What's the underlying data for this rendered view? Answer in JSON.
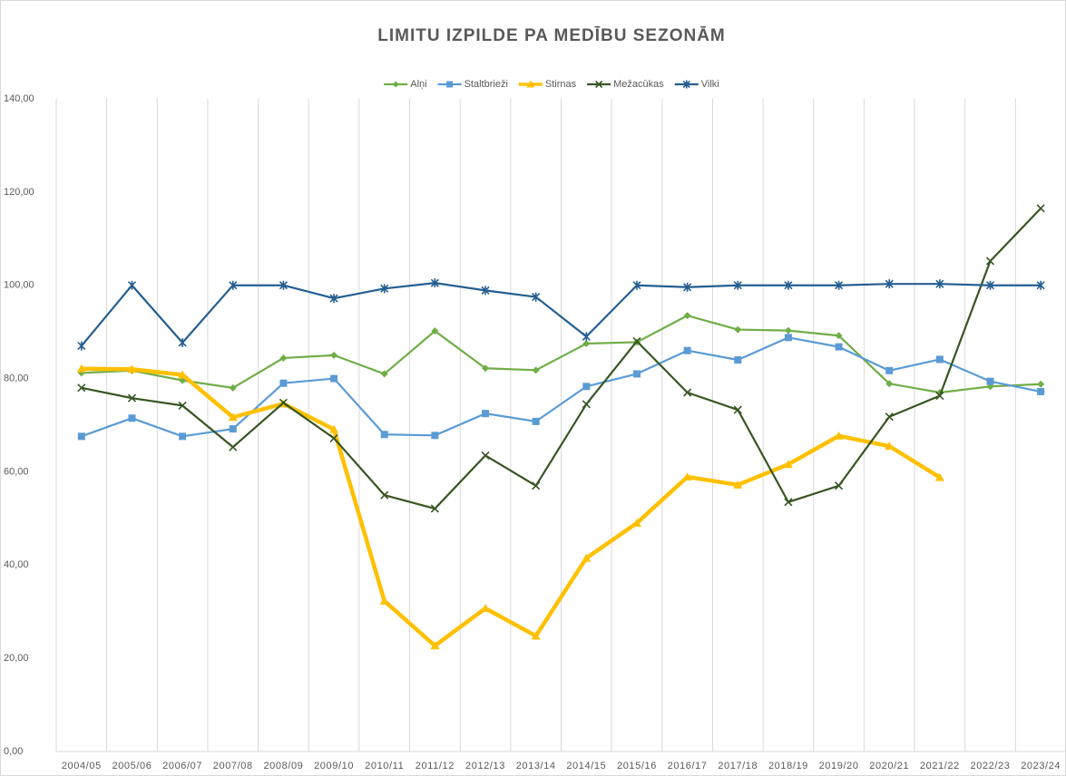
{
  "chart_data": {
    "type": "line",
    "title": "LIMITU IZPILDE PA MEDĪBU SEZONĀM",
    "categories": [
      "2004/05",
      "2005/06",
      "2006/07",
      "2007/08",
      "2008/09",
      "2009/10",
      "2010/11",
      "2011/12",
      "2012/13",
      "2013/14",
      "2014/15",
      "2015/16",
      "2016/17",
      "2017/18",
      "2018/19",
      "2019/20",
      "2020/21",
      "2021/22",
      "2022/23",
      "2023/24"
    ],
    "series": [
      {
        "name": "Alņi",
        "color": "#70ad47",
        "marker": "diamond",
        "width": 2.2,
        "values": [
          81.2,
          81.7,
          79.6,
          78.0,
          84.4,
          85.0,
          81.0,
          90.2,
          82.2,
          81.8,
          87.5,
          87.8,
          93.5,
          90.5,
          90.3,
          89.2,
          78.9,
          77.0,
          78.3,
          78.8
        ]
      },
      {
        "name": "Staltbrieži",
        "color": "#5b9bd5",
        "marker": "square",
        "width": 2.2,
        "values": [
          67.6,
          71.5,
          67.6,
          69.2,
          79.0,
          80.0,
          68.0,
          67.8,
          72.5,
          70.8,
          78.3,
          81.0,
          86.0,
          84.0,
          88.8,
          86.8,
          81.7,
          84.1,
          79.4,
          77.2
        ]
      },
      {
        "name": "Stirnas",
        "color": "#ffc000",
        "marker": "triangle",
        "width": 4.5,
        "values": [
          82.1,
          82.0,
          80.8,
          71.7,
          74.6,
          69.1,
          32.3,
          22.7,
          30.7,
          24.8,
          41.5,
          49.0,
          58.9,
          57.2,
          61.6,
          67.7,
          65.5,
          58.8,
          null,
          null
        ]
      },
      {
        "name": "Mežacūkas",
        "color": "#375623",
        "marker": "x",
        "width": 2.2,
        "values": [
          78.0,
          75.8,
          74.2,
          65.3,
          74.8,
          67.2,
          55.0,
          52.1,
          63.5,
          57.0,
          74.5,
          88.0,
          77.0,
          73.3,
          53.5,
          57.0,
          71.8,
          76.3,
          105.2,
          116.5
        ]
      },
      {
        "name": "Vilki",
        "color": "#255e91",
        "marker": "star",
        "width": 2.2,
        "values": [
          87.0,
          100.0,
          87.7,
          100.0,
          100.0,
          97.2,
          99.3,
          100.5,
          98.9,
          97.5,
          89.0,
          100.0,
          99.6,
          100.0,
          100.0,
          100.0,
          100.3,
          100.3,
          100.0,
          100.0
        ]
      }
    ],
    "ylim": [
      0,
      140
    ],
    "yticks": [
      {
        "value": 0,
        "label": "0,00"
      },
      {
        "value": 20,
        "label": "20,00"
      },
      {
        "value": 40,
        "label": "40,00"
      },
      {
        "value": 60,
        "label": "60,00"
      },
      {
        "value": 80,
        "label": "80,00"
      },
      {
        "value": 100,
        "label": "100,00"
      },
      {
        "value": 120,
        "label": "120,00"
      },
      {
        "value": 140,
        "label": "140,00"
      }
    ],
    "grid": false,
    "category_grid": true,
    "legend": "top"
  }
}
